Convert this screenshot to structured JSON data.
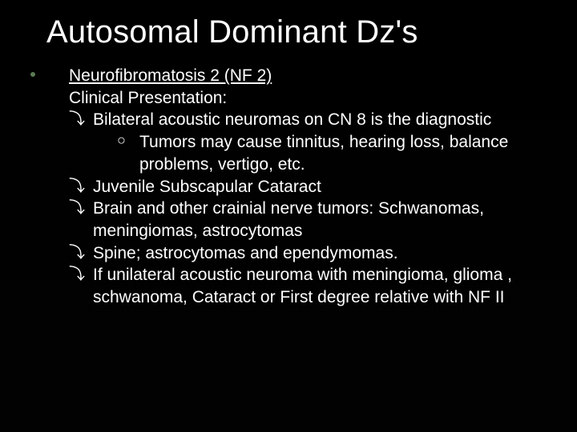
{
  "slide": {
    "background_color": "#000000",
    "text_color": "#ffffff",
    "accent_bullet_color": "#5b7a54",
    "title": "Autosomal Dominant Dz's",
    "title_fontsize": 40,
    "body_fontsize": 21,
    "line_height": 1.32,
    "bullet_l3_glyph": "⤵",
    "bullet_l4_glyph": "○",
    "content": {
      "l1_heading": "Neurofibromatosis 2 (NF 2)",
      "l2_subhead": "Clinical Presentation:",
      "items": [
        {
          "text": " Bilateral acoustic neuromas on CN 8 is the diagnostic",
          "sub": {
            "text": "Tumors may cause tinnitus, hearing loss, balance problems, vertigo, etc."
          }
        },
        {
          "text": "Juvenile Subscapular Cataract"
        },
        {
          "text": "Brain and other crainial nerve tumors: Schwanomas, meningiomas, astrocytomas"
        },
        {
          "text": "Spine; astrocytomas and ependymomas."
        },
        {
          "text": "If unilateral acoustic neuroma with meningioma, glioma , schwanoma,  Cataract or First degree relative with NF II"
        }
      ]
    }
  }
}
